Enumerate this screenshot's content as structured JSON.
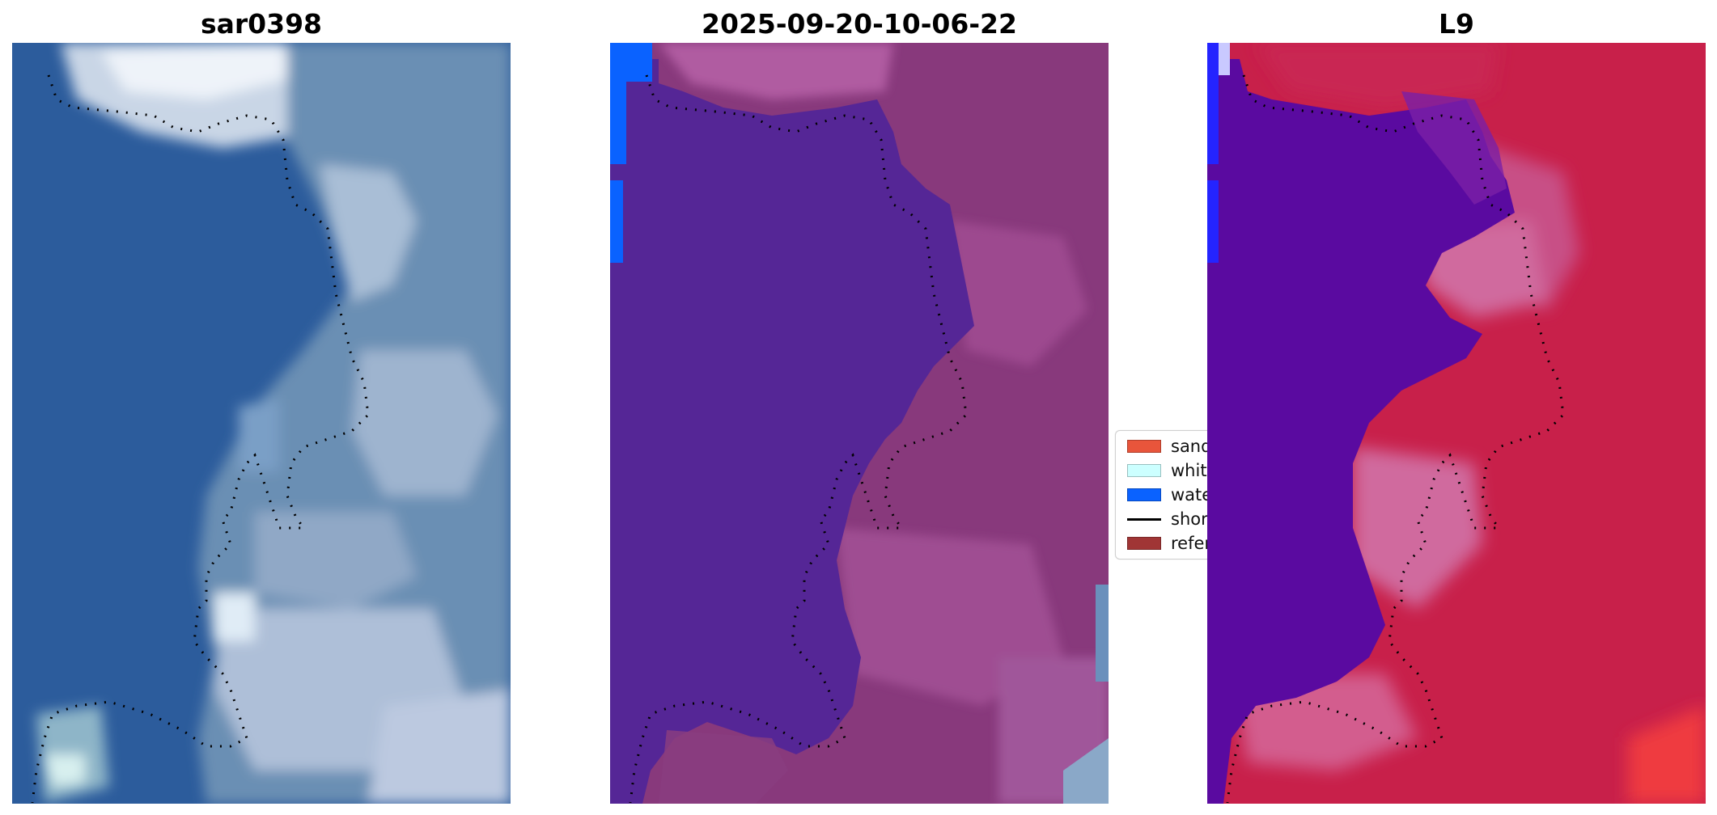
{
  "panels": [
    {
      "title": "sar0398",
      "style": "rgb"
    },
    {
      "title": "2025-09-20-10-06-22",
      "style": "class"
    },
    {
      "title": "L9",
      "style": "index"
    }
  ],
  "legend": {
    "items": [
      {
        "label": "sand",
        "color": "#e8553b"
      },
      {
        "label": "whit",
        "color": "#ccffff"
      },
      {
        "label": "wate",
        "color": "#0a62ff"
      },
      {
        "label": "shor",
        "color": "#000000"
      },
      {
        "label": "refer",
        "color": "#a03535"
      }
    ]
  },
  "colors": {
    "water_rgb": "#2f5f9e",
    "water_class": "#552696",
    "water_index": "#5a0aa0",
    "land_class": "#8a3d80",
    "land_index": "#c8204a",
    "water_edge": "#0a62ff",
    "shoreline": "#000000"
  }
}
